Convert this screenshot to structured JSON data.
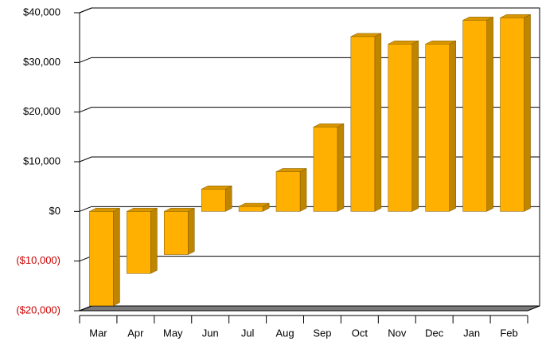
{
  "chart_data": {
    "type": "bar3d",
    "categories": [
      "Mar",
      "Apr",
      "May",
      "Jun",
      "Jul",
      "Aug",
      "Sep",
      "Oct",
      "Nov",
      "Dec",
      "Jan",
      "Feb"
    ],
    "values": [
      -19000,
      -12500,
      -8700,
      4500,
      1000,
      8000,
      17000,
      35200,
      33700,
      33700,
      38500,
      39000
    ],
    "color": "#ffb000",
    "ylim": [
      -20000,
      40000
    ],
    "yticks": [
      {
        "value": -20000,
        "label": "($20,000)"
      },
      {
        "value": -10000,
        "label": "($10,000)"
      },
      {
        "value": 0,
        "label": "$0"
      },
      {
        "value": 10000,
        "label": "$10,000"
      },
      {
        "value": 20000,
        "label": "$20,000"
      },
      {
        "value": 30000,
        "label": "$30,000"
      },
      {
        "value": 40000,
        "label": "$40,000"
      }
    ],
    "negative_label_color": "#cc0000",
    "grid": true
  }
}
